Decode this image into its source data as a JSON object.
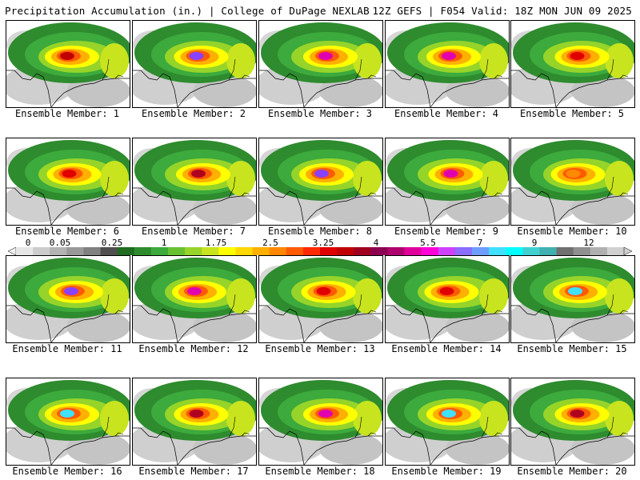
{
  "header": {
    "left": "Precipitation Accumulation (in.) | College of DuPage NEXLAB",
    "right": "12Z GEFS | F054 Valid: 18Z MON JUN 09 2025"
  },
  "colorbar": {
    "tick_labels": [
      "0",
      "0.05",
      "0.25",
      "1",
      "1.75",
      "2.5",
      "3.25",
      "4",
      "5.5",
      "7",
      "9",
      "12"
    ],
    "colors": [
      "#e6e6e6",
      "#cccccc",
      "#b3b3b3",
      "#999999",
      "#808080",
      "#4f4f4f",
      "#1f6b1f",
      "#2e8b2e",
      "#3caa3c",
      "#67c12f",
      "#96d42a",
      "#c8e41e",
      "#ffff00",
      "#ffd800",
      "#ffb000",
      "#ff8800",
      "#ff5a00",
      "#ff2a00",
      "#e00000",
      "#c00000",
      "#a00020",
      "#8b0050",
      "#b0006e",
      "#e0009a",
      "#ff00d8",
      "#d040ff",
      "#8a6cff",
      "#6f9cff",
      "#40e0ff",
      "#00ffff",
      "#40d0d0",
      "#40b0b0",
      "#707070",
      "#909090",
      "#b0b0b0",
      "#d0d0d0"
    ]
  },
  "panels": [
    {
      "label": "Ensemble Member: 1",
      "max": "high"
    },
    {
      "label": "Ensemble Member: 2",
      "max": "purple"
    },
    {
      "label": "Ensemble Member: 3",
      "max": "magenta"
    },
    {
      "label": "Ensemble Member: 4",
      "max": "magenta"
    },
    {
      "label": "Ensemble Member: 5",
      "max": "red"
    },
    {
      "label": "Ensemble Member: 6",
      "max": "red"
    },
    {
      "label": "Ensemble Member: 7",
      "max": "dark-red"
    },
    {
      "label": "Ensemble Member: 8",
      "max": "purple"
    },
    {
      "label": "Ensemble Member: 9",
      "max": "magenta"
    },
    {
      "label": "Ensemble Member: 10",
      "max": "orange"
    },
    {
      "label": "Ensemble Member: 11",
      "max": "purple"
    },
    {
      "label": "Ensemble Member: 12",
      "max": "magenta"
    },
    {
      "label": "Ensemble Member: 13",
      "max": "red"
    },
    {
      "label": "Ensemble Member: 14",
      "max": "red"
    },
    {
      "label": "Ensemble Member: 15",
      "max": "cyan"
    },
    {
      "label": "Ensemble Member: 16",
      "max": "cyan"
    },
    {
      "label": "Ensemble Member: 17",
      "max": "dark-red"
    },
    {
      "label": "Ensemble Member: 18",
      "max": "magenta"
    },
    {
      "label": "Ensemble Member: 19",
      "max": "cyan"
    },
    {
      "label": "Ensemble Member: 20",
      "max": "dark-red"
    }
  ]
}
